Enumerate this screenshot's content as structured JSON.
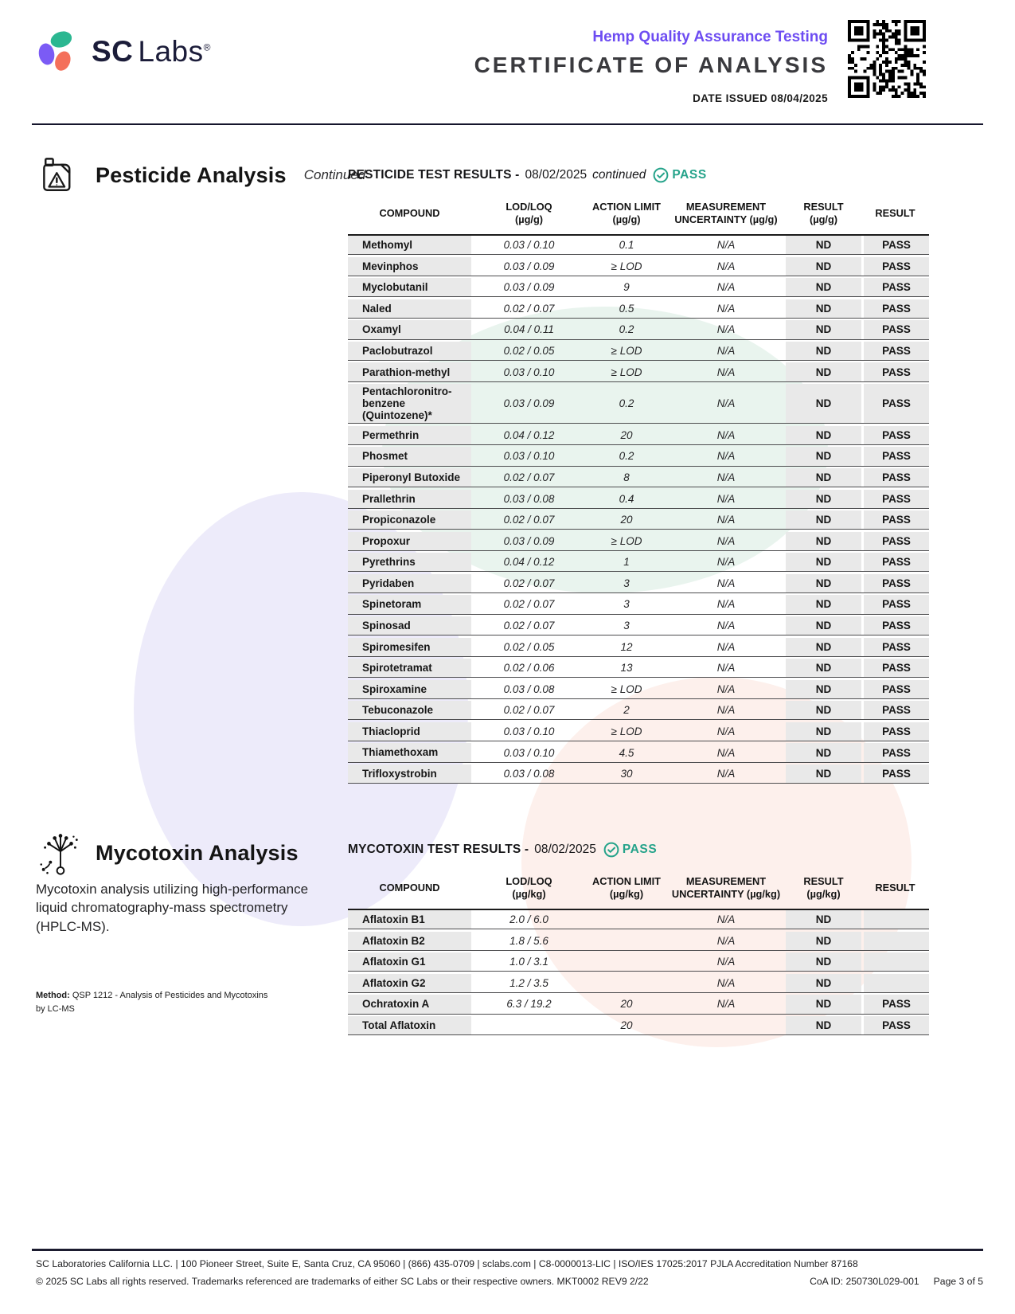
{
  "header": {
    "brand_sc": "SC",
    "brand_labs": "Labs",
    "registered": "®",
    "program_title": "Hemp Quality Assurance Testing",
    "doc_title": "CERTIFICATE OF ANALYSIS",
    "date_issued": "DATE ISSUED 08/04/2025"
  },
  "pesticide": {
    "section_title": "Pesticide Analysis",
    "section_subtitle": "Continued",
    "results_title": "PESTICIDE TEST RESULTS -",
    "results_date": "08/02/2025",
    "results_note": "continued",
    "status": "PASS",
    "columns": {
      "compound": "COMPOUND",
      "lod_loq": "LOD/LOQ",
      "lod_loq_unit": "(µg/g)",
      "action_limit": "ACTION LIMIT",
      "action_limit_unit": "(µg/g)",
      "uncertainty": "MEASUREMENT",
      "uncertainty_unit": "UNCERTAINTY (µg/g)",
      "result": "RESULT",
      "result_unit": "(µg/g)",
      "result2": "RESULT"
    },
    "rows": [
      {
        "compound": "Methomyl",
        "lod_loq": "0.03 / 0.10",
        "action_limit": "0.1",
        "uncertainty": "N/A",
        "result": "ND",
        "status": "PASS"
      },
      {
        "compound": "Mevinphos",
        "lod_loq": "0.03 / 0.09",
        "action_limit": "≥ LOD",
        "uncertainty": "N/A",
        "result": "ND",
        "status": "PASS"
      },
      {
        "compound": "Myclobutanil",
        "lod_loq": "0.03 / 0.09",
        "action_limit": "9",
        "uncertainty": "N/A",
        "result": "ND",
        "status": "PASS"
      },
      {
        "compound": "Naled",
        "lod_loq": "0.02 / 0.07",
        "action_limit": "0.5",
        "uncertainty": "N/A",
        "result": "ND",
        "status": "PASS"
      },
      {
        "compound": "Oxamyl",
        "lod_loq": "0.04 / 0.11",
        "action_limit": "0.2",
        "uncertainty": "N/A",
        "result": "ND",
        "status": "PASS"
      },
      {
        "compound": "Paclobutrazol",
        "lod_loq": "0.02 / 0.05",
        "action_limit": "≥ LOD",
        "uncertainty": "N/A",
        "result": "ND",
        "status": "PASS"
      },
      {
        "compound": "Parathion-methyl",
        "lod_loq": "0.03 / 0.10",
        "action_limit": "≥ LOD",
        "uncertainty": "N/A",
        "result": "ND",
        "status": "PASS"
      },
      {
        "compound": "Pentachloronitro-benzene (Quintozene)*",
        "lod_loq": "0.03 / 0.09",
        "action_limit": "0.2",
        "uncertainty": "N/A",
        "result": "ND",
        "status": "PASS"
      },
      {
        "compound": "Permethrin",
        "lod_loq": "0.04 / 0.12",
        "action_limit": "20",
        "uncertainty": "N/A",
        "result": "ND",
        "status": "PASS"
      },
      {
        "compound": "Phosmet",
        "lod_loq": "0.03 / 0.10",
        "action_limit": "0.2",
        "uncertainty": "N/A",
        "result": "ND",
        "status": "PASS"
      },
      {
        "compound": "Piperonyl Butoxide",
        "lod_loq": "0.02 / 0.07",
        "action_limit": "8",
        "uncertainty": "N/A",
        "result": "ND",
        "status": "PASS"
      },
      {
        "compound": "Prallethrin",
        "lod_loq": "0.03 / 0.08",
        "action_limit": "0.4",
        "uncertainty": "N/A",
        "result": "ND",
        "status": "PASS"
      },
      {
        "compound": "Propiconazole",
        "lod_loq": "0.02 / 0.07",
        "action_limit": "20",
        "uncertainty": "N/A",
        "result": "ND",
        "status": "PASS"
      },
      {
        "compound": "Propoxur",
        "lod_loq": "0.03 / 0.09",
        "action_limit": "≥ LOD",
        "uncertainty": "N/A",
        "result": "ND",
        "status": "PASS"
      },
      {
        "compound": "Pyrethrins",
        "lod_loq": "0.04 / 0.12",
        "action_limit": "1",
        "uncertainty": "N/A",
        "result": "ND",
        "status": "PASS"
      },
      {
        "compound": "Pyridaben",
        "lod_loq": "0.02 / 0.07",
        "action_limit": "3",
        "uncertainty": "N/A",
        "result": "ND",
        "status": "PASS"
      },
      {
        "compound": "Spinetoram",
        "lod_loq": "0.02 / 0.07",
        "action_limit": "3",
        "uncertainty": "N/A",
        "result": "ND",
        "status": "PASS"
      },
      {
        "compound": "Spinosad",
        "lod_loq": "0.02 / 0.07",
        "action_limit": "3",
        "uncertainty": "N/A",
        "result": "ND",
        "status": "PASS"
      },
      {
        "compound": "Spiromesifen",
        "lod_loq": "0.02 / 0.05",
        "action_limit": "12",
        "uncertainty": "N/A",
        "result": "ND",
        "status": "PASS"
      },
      {
        "compound": "Spirotetramat",
        "lod_loq": "0.02 / 0.06",
        "action_limit": "13",
        "uncertainty": "N/A",
        "result": "ND",
        "status": "PASS"
      },
      {
        "compound": "Spiroxamine",
        "lod_loq": "0.03 / 0.08",
        "action_limit": "≥ LOD",
        "uncertainty": "N/A",
        "result": "ND",
        "status": "PASS"
      },
      {
        "compound": "Tebuconazole",
        "lod_loq": "0.02 / 0.07",
        "action_limit": "2",
        "uncertainty": "N/A",
        "result": "ND",
        "status": "PASS"
      },
      {
        "compound": "Thiacloprid",
        "lod_loq": "0.03 / 0.10",
        "action_limit": "≥ LOD",
        "uncertainty": "N/A",
        "result": "ND",
        "status": "PASS"
      },
      {
        "compound": "Thiamethoxam",
        "lod_loq": "0.03 / 0.10",
        "action_limit": "4.5",
        "uncertainty": "N/A",
        "result": "ND",
        "status": "PASS"
      },
      {
        "compound": "Trifloxystrobin",
        "lod_loq": "0.03 / 0.08",
        "action_limit": "30",
        "uncertainty": "N/A",
        "result": "ND",
        "status": "PASS"
      }
    ]
  },
  "mycotoxin": {
    "section_title": "Mycotoxin Analysis",
    "description": "Mycotoxin analysis utilizing high-performance liquid chromatography-mass spectrometry (HPLC-MS).",
    "method_label": "Method:",
    "method_text": " QSP 1212 - Analysis of Pesticides and Mycotoxins by LC-MS",
    "results_title": "MYCOTOXIN TEST RESULTS -",
    "results_date": "08/02/2025",
    "status": "PASS",
    "columns": {
      "compound": "COMPOUND",
      "lod_loq": "LOD/LOQ",
      "lod_loq_unit": "(µg/kg)",
      "action_limit": "ACTION LIMIT",
      "action_limit_unit": "(µg/kg)",
      "uncertainty": "MEASUREMENT",
      "uncertainty_unit": "UNCERTAINTY (µg/kg)",
      "result": "RESULT",
      "result_unit": "(µg/kg)",
      "result2": "RESULT"
    },
    "rows": [
      {
        "compound": "Aflatoxin B1",
        "lod_loq": "2.0 / 6.0",
        "action_limit": "",
        "uncertainty": "N/A",
        "result": "ND",
        "status": ""
      },
      {
        "compound": "Aflatoxin B2",
        "lod_loq": "1.8 / 5.6",
        "action_limit": "",
        "uncertainty": "N/A",
        "result": "ND",
        "status": ""
      },
      {
        "compound": "Aflatoxin G1",
        "lod_loq": "1.0 / 3.1",
        "action_limit": "",
        "uncertainty": "N/A",
        "result": "ND",
        "status": ""
      },
      {
        "compound": "Aflatoxin G2",
        "lod_loq": "1.2 / 3.5",
        "action_limit": "",
        "uncertainty": "N/A",
        "result": "ND",
        "status": ""
      },
      {
        "compound": "Ochratoxin A",
        "lod_loq": "6.3 / 19.2",
        "action_limit": "20",
        "uncertainty": "N/A",
        "result": "ND",
        "status": "PASS"
      },
      {
        "compound": "Total Aflatoxin",
        "lod_loq": "",
        "action_limit": "20",
        "uncertainty": "",
        "result": "ND",
        "status": "PASS"
      }
    ]
  },
  "footer": {
    "line1": "SC Laboratories California LLC. | 100 Pioneer Street, Suite E, Santa Cruz, CA 95060 | (866) 435-0709 | sclabs.com | C8-0000013-LIC | ISO/IES 17025:2017 PJLA Accreditation Number 87168",
    "line2": "© 2025 SC Labs all rights reserved. Trademarks referenced are trademarks of either SC Labs or their respective owners. MKT0002 REV9 2/22",
    "coa_id": "CoA ID: 250730L029-001",
    "page": "Page 3 of 5"
  },
  "colors": {
    "accent_purple": "#6d4cf2",
    "pass_teal": "#25a38a",
    "navy": "#1b1c39",
    "logo_purple": "#7b5bf5",
    "logo_teal": "#2bb791",
    "logo_coral": "#f4705b",
    "cell_gray": "#e9e9e9"
  }
}
